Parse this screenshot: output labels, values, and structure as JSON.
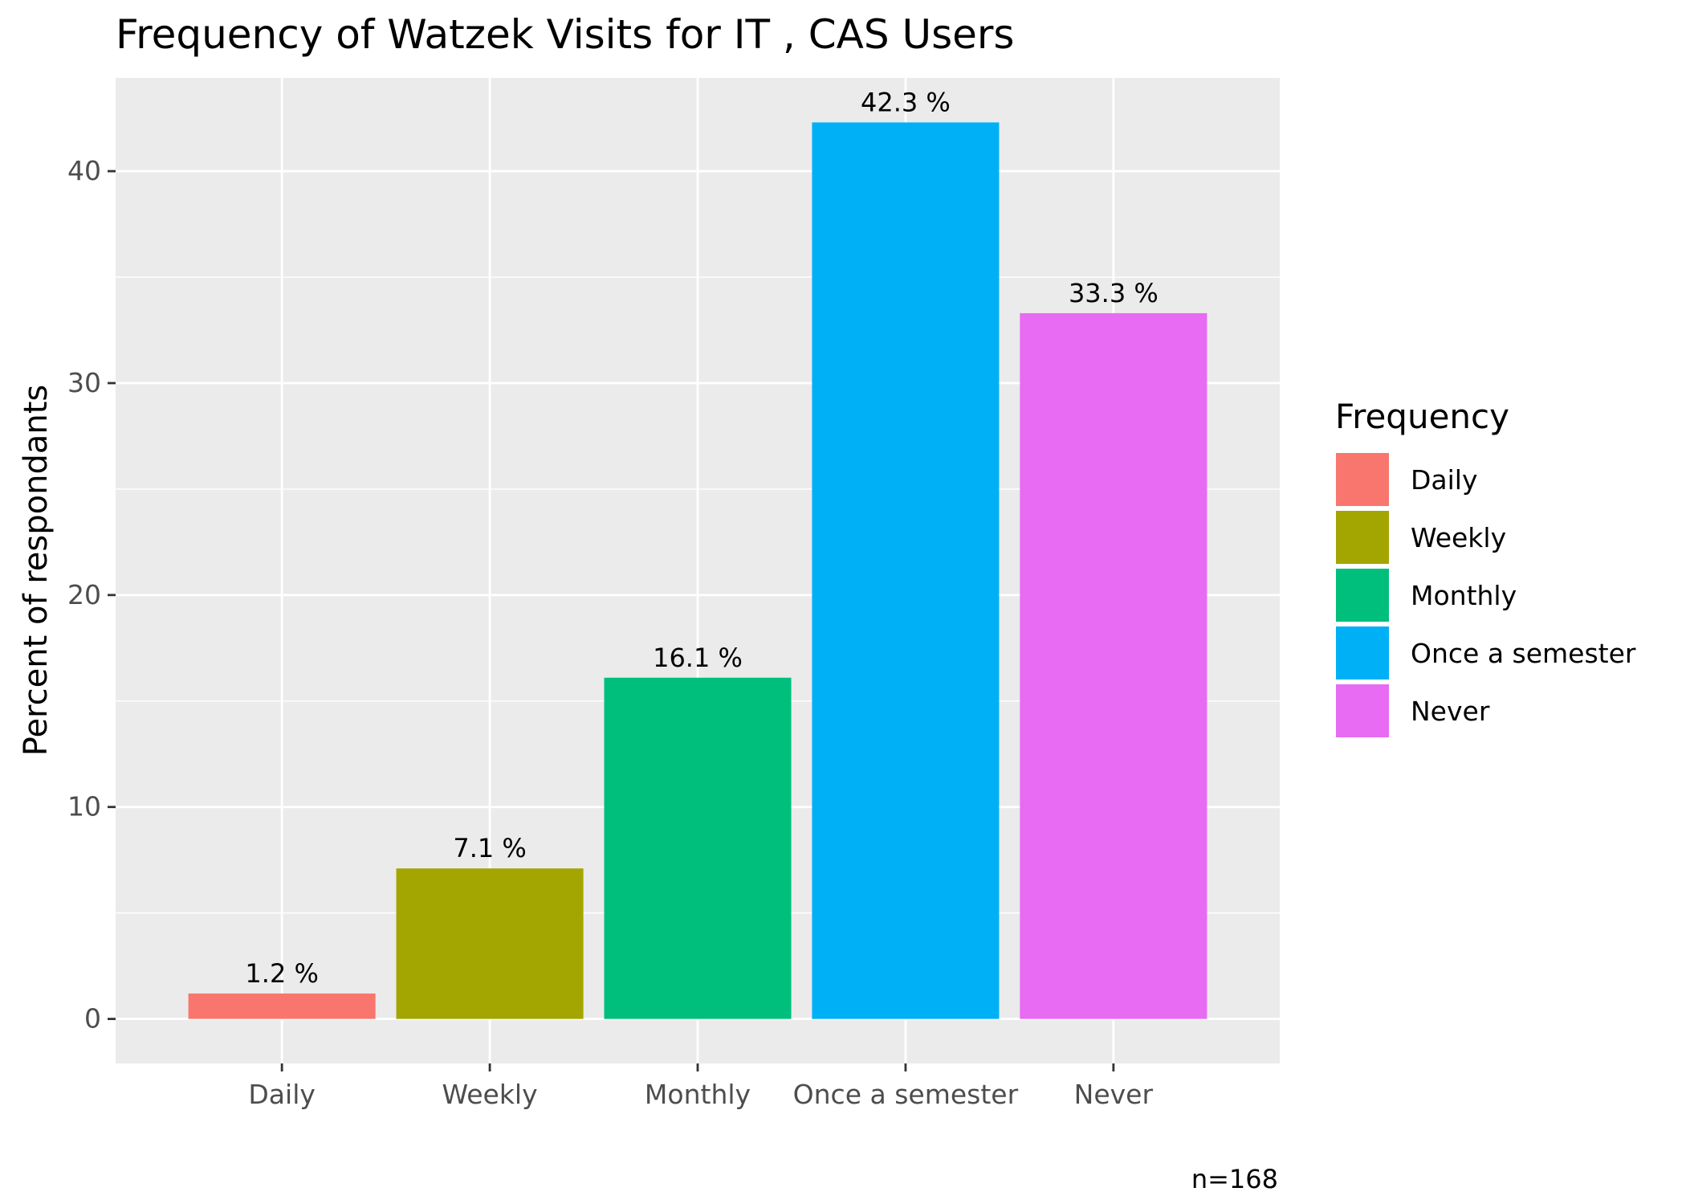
{
  "chart_data": {
    "type": "bar",
    "title": "Frequency of Watzek Visits for IT , CAS Users",
    "xlabel": "",
    "ylabel": "Percent of respondants",
    "categories": [
      "Daily",
      "Weekly",
      "Monthly",
      "Once a semester",
      "Never"
    ],
    "values": [
      1.2,
      7.1,
      16.1,
      42.3,
      33.3
    ],
    "data_labels": [
      "1.2 %",
      "7.1 %",
      "16.1 %",
      "42.3 %",
      "33.3 %"
    ],
    "colors": [
      "#F8766D",
      "#A3A500",
      "#00BF7D",
      "#00B0F6",
      "#E76BF3"
    ],
    "yticks": [
      0,
      10,
      20,
      30,
      40
    ],
    "ylim": [
      -2.1,
      44.4
    ],
    "grid": true,
    "legend": {
      "title": "Frequency",
      "position": "right",
      "entries": [
        "Daily",
        "Weekly",
        "Monthly",
        "Once a semester",
        "Never"
      ]
    },
    "caption": "n=168"
  }
}
